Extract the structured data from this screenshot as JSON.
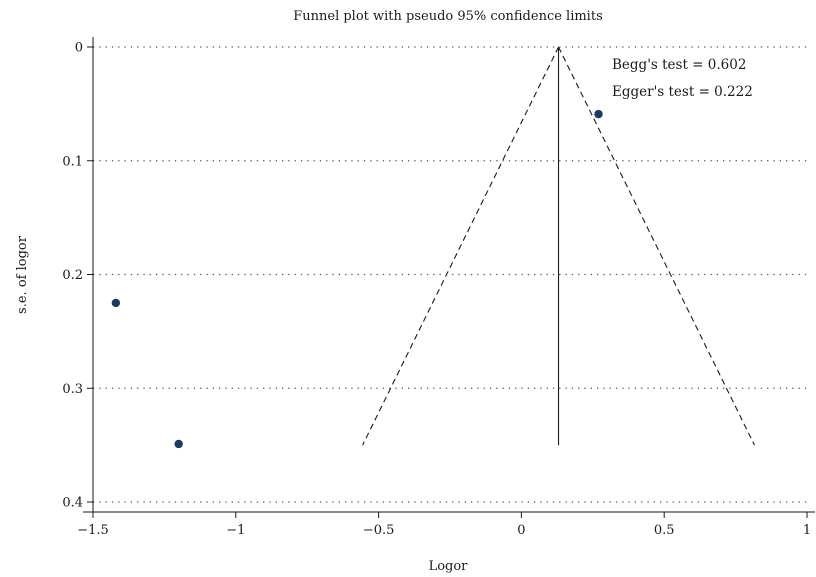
{
  "chart_data": {
    "type": "scatter",
    "title": "Funnel plot with pseudo 95% confidence limits",
    "xlabel": "Logor",
    "ylabel": "s.e. of logor",
    "xlim": [
      -1.5,
      1
    ],
    "ylim": [
      0,
      0.4
    ],
    "y_reversed": true,
    "x_ticks": [
      -1.5,
      -1,
      -0.5,
      0,
      0.5,
      1
    ],
    "x_tick_labels": [
      "−1.5",
      "−1",
      "−0.5",
      "0",
      "0.5",
      "1"
    ],
    "y_ticks": [
      0,
      0.1,
      0.2,
      0.3,
      0.4
    ],
    "y_tick_labels": [
      "0",
      "0.1",
      "0.2",
      "0.3",
      "0.4"
    ],
    "grid": "horizontal-dotted",
    "points": [
      {
        "x": 0.27,
        "y": 0.059
      },
      {
        "x": -1.42,
        "y": 0.225
      },
      {
        "x": -1.2,
        "y": 0.349
      }
    ],
    "pooled_estimate": 0.13,
    "se_max": 0.35,
    "annotations": [
      "Begg's test = 0.602",
      "Egger's test = 0.222"
    ],
    "colors": {
      "point": "#1f3a5f",
      "line": "#1a1a1a",
      "grid": "#555555"
    }
  }
}
